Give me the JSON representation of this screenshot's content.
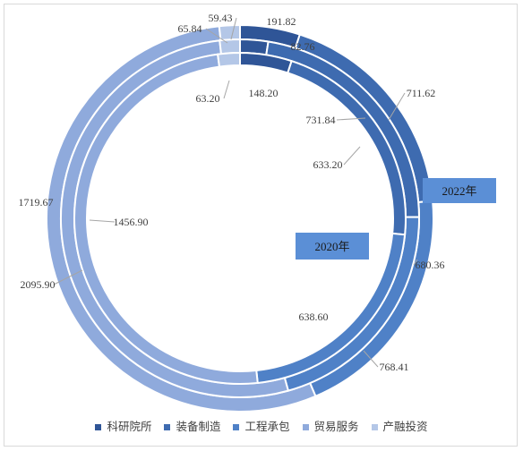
{
  "chart_data": {
    "type": "donut",
    "categories": [
      "科研院所",
      "装备制造",
      "工程承包",
      "贸易服务",
      "产融投资"
    ],
    "colors": [
      "#2f5597",
      "#3e6bb0",
      "#4f81c7",
      "#8faadc",
      "#b4c7e7"
    ],
    "series": [
      {
        "name": "2022年",
        "ring": "outer",
        "values": [
          191.82,
          711.62,
          768.41,
          2095.9,
          65.84
        ]
      },
      {
        "name": "",
        "ring": "middle",
        "values": [
          82.76,
          731.84,
          680.36,
          1719.67,
          59.43
        ]
      },
      {
        "name": "2020年",
        "ring": "inner",
        "values": [
          148.2,
          633.2,
          638.6,
          1456.9,
          63.2
        ]
      }
    ],
    "data_labels": {
      "outer": [
        "191.82",
        "711.62",
        "768.41",
        "2095.90",
        "65.84"
      ],
      "middle": [
        "82.76",
        "731.84",
        "680.36",
        "1719.67",
        "59.43"
      ],
      "inner": [
        "148.20",
        "633.20",
        "638.60",
        "1456.90",
        "63.20"
      ]
    },
    "callouts": [
      "2022年",
      "2020年"
    ],
    "legend_position": "bottom"
  }
}
